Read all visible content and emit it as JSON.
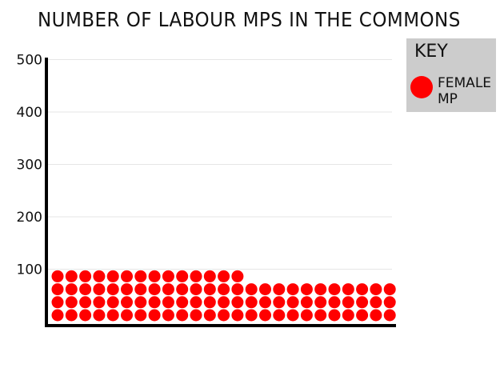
{
  "chart_data": {
    "type": "pictogram",
    "title": "NUMBER OF LABOUR MPS IN THE COMMONS",
    "xlabel": "",
    "ylabel": "",
    "ylim": [
      0,
      500
    ],
    "yticks": [
      100,
      200,
      300,
      400,
      500
    ],
    "grid": true,
    "legend": {
      "title": "KEY",
      "placement": "top-right"
    },
    "series": [
      {
        "name": "FEMALE MP",
        "value": 77,
        "color": "#ff0000"
      }
    ],
    "grid_rows": [
      25,
      25,
      25,
      14
    ]
  }
}
